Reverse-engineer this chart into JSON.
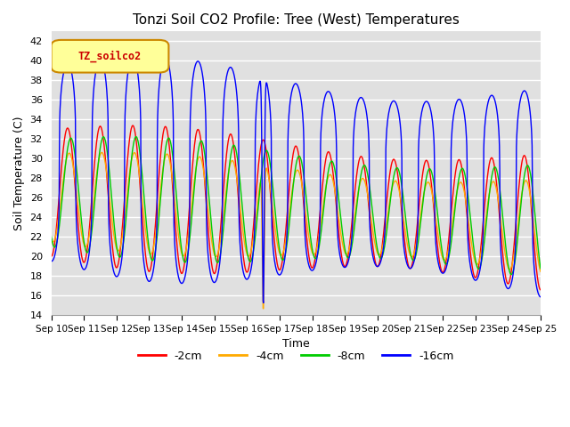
{
  "title": "Tonzi Soil CO2 Profile: Tree (West) Temperatures",
  "xlabel": "Time",
  "ylabel": "Soil Temperature (C)",
  "legend_label": "TZ_soilco2",
  "series_labels": [
    "-2cm",
    "-4cm",
    "-8cm",
    "-16cm"
  ],
  "series_colors": [
    "#ff0000",
    "#ffaa00",
    "#00cc00",
    "#0000ff"
  ],
  "ylim": [
    14,
    43
  ],
  "bg_color": "#e0e0e0",
  "n_points": 1500
}
